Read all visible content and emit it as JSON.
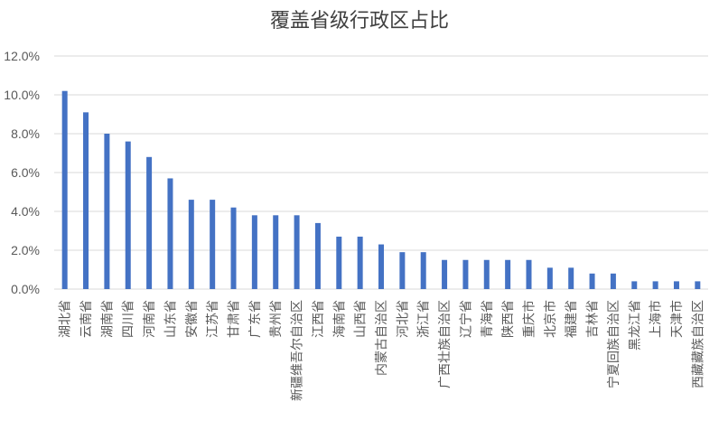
{
  "chart_data": {
    "type": "bar",
    "title": "覆盖省级行政区占比",
    "xlabel": "",
    "ylabel": "",
    "ylim": [
      0,
      12
    ],
    "yticks": [
      0,
      2,
      4,
      6,
      8,
      10,
      12
    ],
    "ytick_labels": [
      "0.0%",
      "2.0%",
      "4.0%",
      "6.0%",
      "8.0%",
      "10.0%",
      "12.0%"
    ],
    "grid": true,
    "legend": "none",
    "bar_color": "#4472C4",
    "grid_color": "#D9D9D9",
    "categories": [
      "湖北省",
      "云南省",
      "湖南省",
      "四川省",
      "河南省",
      "山东省",
      "安徽省",
      "江苏省",
      "甘肃省",
      "广东省",
      "贵州省",
      "新疆维吾尔自治区",
      "江西省",
      "海南省",
      "山西省",
      "内蒙古自治区",
      "河北省",
      "浙江省",
      "广西壮族自治区",
      "辽宁省",
      "青海省",
      "陕西省",
      "重庆市",
      "北京市",
      "福建省",
      "吉林省",
      "宁夏回族自治区",
      "黑龙江省",
      "上海市",
      "天津市",
      "西藏藏族自治区"
    ],
    "values": [
      10.2,
      9.1,
      8.0,
      7.6,
      6.8,
      5.7,
      4.6,
      4.6,
      4.2,
      3.8,
      3.8,
      3.8,
      3.4,
      2.7,
      2.7,
      2.3,
      1.9,
      1.9,
      1.5,
      1.5,
      1.5,
      1.5,
      1.5,
      1.1,
      1.1,
      0.8,
      0.8,
      0.4,
      0.4,
      0.4,
      0.4
    ]
  }
}
